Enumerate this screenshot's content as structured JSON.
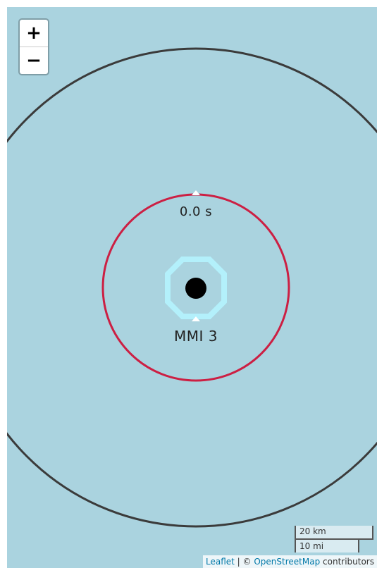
{
  "zoom": {
    "in_label": "+",
    "out_label": "−"
  },
  "overlay": {
    "time_label": "0.0 s",
    "mmi_label": "MMI 3",
    "colors": {
      "outer_circle": "#3b3b3b",
      "inner_circle": "#cc1f43",
      "epicenter_ring": "#b3f0fb",
      "epicenter_dot": "#000000",
      "marker": "#ffffff"
    }
  },
  "scale": {
    "metric": "20 km",
    "imperial": "10 mi"
  },
  "attribution": {
    "leaflet": "Leaflet",
    "separator": " | © ",
    "osm": "OpenStreetMap",
    "suffix": " contributors"
  }
}
